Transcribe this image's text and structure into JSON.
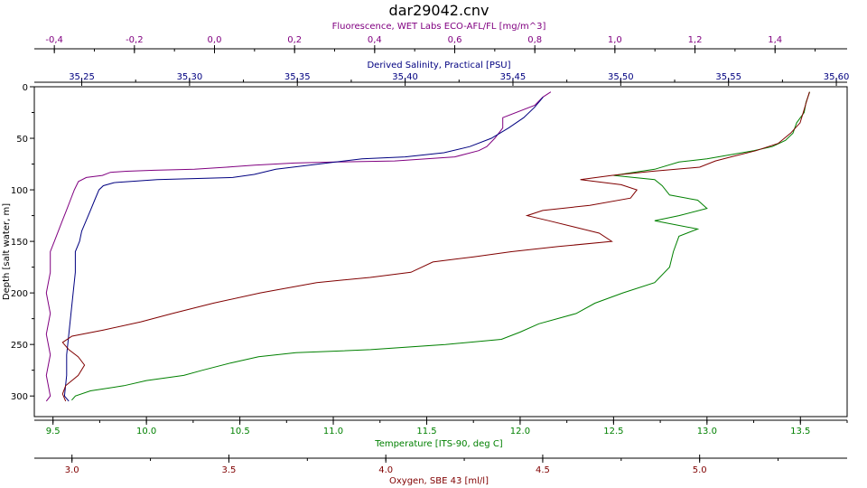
{
  "chart_data": {
    "type": "line",
    "title": "dar29042.cnv",
    "y_axis": {
      "label": "Depth [salt water, m]",
      "range": [
        0,
        320
      ],
      "inverted": true,
      "ticks": [
        0,
        50,
        100,
        150,
        200,
        250,
        300
      ],
      "tick_labels": [
        "0",
        "50",
        "100",
        "150",
        "200",
        "250",
        "300"
      ]
    },
    "x_axes": [
      {
        "id": "fluorescence",
        "label": "Fluorescence, WET Labs ECO-AFL/FL [mg/m^3]",
        "position": "top",
        "color": "#800080",
        "range": [
          -0.45,
          1.58
        ],
        "ticks": [
          -0.4,
          -0.2,
          0.0,
          0.2,
          0.4,
          0.6,
          0.8,
          1.0,
          1.2,
          1.4
        ],
        "tick_labels": [
          "-0,4",
          "-0,2",
          "0,0",
          "0,2",
          "0,4",
          "0,6",
          "0,8",
          "1,0",
          "1,2",
          "1,4"
        ]
      },
      {
        "id": "salinity",
        "label": "Derived Salinity, Practical [PSU]",
        "position": "top",
        "color": "#000080",
        "range": [
          35.228,
          35.605
        ],
        "ticks": [
          35.25,
          35.3,
          35.35,
          35.4,
          35.45,
          35.5,
          35.55,
          35.6
        ],
        "tick_labels": [
          "35,25",
          "35,30",
          "35,35",
          "35,40",
          "35,45",
          "35,50",
          "35,55",
          "35,60"
        ]
      },
      {
        "id": "temperature",
        "label": "Temperature [ITS-90, deg C]",
        "position": "bottom",
        "color": "#008000",
        "range": [
          9.4,
          13.75
        ],
        "ticks": [
          9.5,
          10.0,
          10.5,
          11.0,
          11.5,
          12.0,
          12.5,
          13.0,
          13.5
        ],
        "tick_labels": [
          "9.5",
          "10.0",
          "10.5",
          "11.0",
          "11.5",
          "12.0",
          "12.5",
          "13.0",
          "13.5"
        ]
      },
      {
        "id": "oxygen",
        "label": "Oxygen, SBE 43 [ml/l]",
        "position": "bottom",
        "color": "#800000",
        "range": [
          2.88,
          5.47
        ],
        "ticks": [
          3.0,
          3.5,
          4.0,
          4.5,
          5.0
        ],
        "tick_labels": [
          "3.0",
          "3.5",
          "4.0",
          "4.5",
          "5.0"
        ]
      }
    ],
    "series": [
      {
        "axis": "fluorescence",
        "color": "#800080",
        "points": [
          [
            0.84,
            5
          ],
          [
            0.82,
            10
          ],
          [
            0.8,
            18
          ],
          [
            0.72,
            30
          ],
          [
            0.72,
            40
          ],
          [
            0.7,
            50
          ],
          [
            0.68,
            58
          ],
          [
            0.66,
            62
          ],
          [
            0.6,
            68
          ],
          [
            0.45,
            72
          ],
          [
            0.3,
            73
          ],
          [
            0.2,
            74
          ],
          [
            0.1,
            76
          ],
          [
            0.03,
            78
          ],
          [
            -0.05,
            80
          ],
          [
            -0.15,
            81
          ],
          [
            -0.22,
            82
          ],
          [
            -0.26,
            83
          ],
          [
            -0.28,
            86
          ],
          [
            -0.32,
            88
          ],
          [
            -0.34,
            92
          ],
          [
            -0.35,
            100
          ],
          [
            -0.36,
            110
          ],
          [
            -0.37,
            120
          ],
          [
            -0.38,
            130
          ],
          [
            -0.39,
            140
          ],
          [
            -0.4,
            150
          ],
          [
            -0.41,
            160
          ],
          [
            -0.41,
            180
          ],
          [
            -0.42,
            200
          ],
          [
            -0.41,
            220
          ],
          [
            -0.42,
            240
          ],
          [
            -0.41,
            260
          ],
          [
            -0.42,
            280
          ],
          [
            -0.41,
            300
          ],
          [
            -0.42,
            305
          ]
        ]
      },
      {
        "axis": "salinity",
        "color": "#000080",
        "points": [
          [
            35.464,
            10
          ],
          [
            35.46,
            20
          ],
          [
            35.455,
            30
          ],
          [
            35.448,
            40
          ],
          [
            35.44,
            50
          ],
          [
            35.43,
            58
          ],
          [
            35.418,
            64
          ],
          [
            35.4,
            68
          ],
          [
            35.38,
            70
          ],
          [
            35.36,
            75
          ],
          [
            35.34,
            80
          ],
          [
            35.33,
            85
          ],
          [
            35.32,
            88
          ],
          [
            35.285,
            90
          ],
          [
            35.265,
            93
          ],
          [
            35.26,
            96
          ],
          [
            35.258,
            100
          ],
          [
            35.256,
            110
          ],
          [
            35.254,
            120
          ],
          [
            35.252,
            130
          ],
          [
            35.25,
            140
          ],
          [
            35.249,
            150
          ],
          [
            35.247,
            160
          ],
          [
            35.247,
            180
          ],
          [
            35.246,
            200
          ],
          [
            35.245,
            220
          ],
          [
            35.244,
            240
          ],
          [
            35.243,
            260
          ],
          [
            35.243,
            280
          ],
          [
            35.242,
            300
          ],
          [
            35.244,
            305
          ]
        ]
      },
      {
        "axis": "temperature",
        "color": "#008000",
        "points": [
          [
            13.55,
            5
          ],
          [
            13.53,
            15
          ],
          [
            13.52,
            25
          ],
          [
            13.48,
            35
          ],
          [
            13.46,
            45
          ],
          [
            13.42,
            52
          ],
          [
            13.35,
            58
          ],
          [
            13.25,
            62
          ],
          [
            13.0,
            70
          ],
          [
            12.85,
            73
          ],
          [
            12.72,
            80
          ],
          [
            12.5,
            86
          ],
          [
            12.72,
            90
          ],
          [
            12.76,
            96
          ],
          [
            12.8,
            105
          ],
          [
            12.95,
            110
          ],
          [
            13.0,
            118
          ],
          [
            12.85,
            125
          ],
          [
            12.72,
            130
          ],
          [
            12.95,
            138
          ],
          [
            12.85,
            145
          ],
          [
            12.82,
            160
          ],
          [
            12.8,
            175
          ],
          [
            12.72,
            190
          ],
          [
            12.55,
            200
          ],
          [
            12.4,
            210
          ],
          [
            12.3,
            220
          ],
          [
            12.1,
            230
          ],
          [
            12.0,
            238
          ],
          [
            11.9,
            245
          ],
          [
            11.6,
            250
          ],
          [
            11.2,
            255
          ],
          [
            10.8,
            258
          ],
          [
            10.6,
            262
          ],
          [
            10.45,
            268
          ],
          [
            10.3,
            275
          ],
          [
            10.2,
            280
          ],
          [
            10.0,
            285
          ],
          [
            9.88,
            290
          ],
          [
            9.7,
            295
          ],
          [
            9.62,
            300
          ],
          [
            9.6,
            304
          ]
        ]
      },
      {
        "axis": "oxygen",
        "color": "#800000",
        "points": [
          [
            5.35,
            5
          ],
          [
            5.34,
            15
          ],
          [
            5.33,
            25
          ],
          [
            5.32,
            35
          ],
          [
            5.29,
            45
          ],
          [
            5.25,
            55
          ],
          [
            5.18,
            62
          ],
          [
            5.1,
            68
          ],
          [
            5.05,
            72
          ],
          [
            5.0,
            78
          ],
          [
            4.85,
            82
          ],
          [
            4.72,
            86
          ],
          [
            4.62,
            90
          ],
          [
            4.75,
            95
          ],
          [
            4.8,
            100
          ],
          [
            4.78,
            108
          ],
          [
            4.65,
            115
          ],
          [
            4.5,
            120
          ],
          [
            4.45,
            125
          ],
          [
            4.52,
            130
          ],
          [
            4.6,
            136
          ],
          [
            4.68,
            142
          ],
          [
            4.72,
            150
          ],
          [
            4.55,
            155
          ],
          [
            4.4,
            160
          ],
          [
            4.28,
            165
          ],
          [
            4.15,
            170
          ],
          [
            4.08,
            180
          ],
          [
            3.95,
            185
          ],
          [
            3.78,
            190
          ],
          [
            3.6,
            200
          ],
          [
            3.45,
            210
          ],
          [
            3.32,
            220
          ],
          [
            3.22,
            228
          ],
          [
            3.1,
            236
          ],
          [
            3.0,
            242
          ],
          [
            2.97,
            248
          ],
          [
            2.99,
            255
          ],
          [
            3.02,
            262
          ],
          [
            3.04,
            270
          ],
          [
            3.02,
            280
          ],
          [
            2.98,
            290
          ],
          [
            2.97,
            298
          ],
          [
            2.98,
            305
          ]
        ]
      }
    ]
  }
}
